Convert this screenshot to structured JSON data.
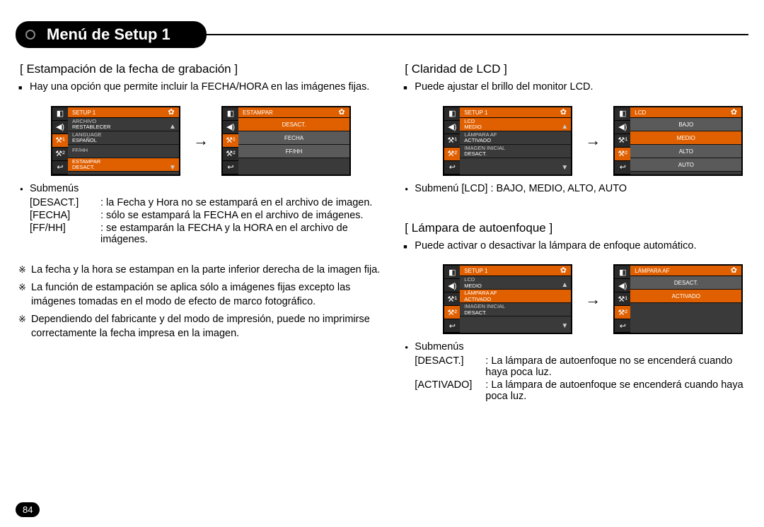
{
  "page": {
    "title": "Menú de Setup 1",
    "number": "84"
  },
  "colors": {
    "accent": "#e06000",
    "menu_bg": "#3a3a3a",
    "border": "#000000",
    "text": "#000000"
  },
  "tabs_icons": [
    "◧",
    "◀)",
    "⚒¹",
    "⚒²",
    "↩"
  ],
  "left": {
    "section": "[ Estampación de la fecha de grabación ]",
    "intro": "Hay una opción que permite incluir la FECHA/HORA en las imágenes fijas.",
    "menu1": {
      "header": "SETUP 1",
      "items": [
        {
          "lbl": "ARCHIVO",
          "val": "RESTABLECER"
        },
        {
          "lbl": "LANGUAGE",
          "val": "ESPAÑOL"
        },
        {
          "lbl": "FF/HH",
          "val": ""
        },
        {
          "lbl": "ESTAMPAR",
          "val": "DESACT."
        }
      ],
      "hi_index": 3
    },
    "menu2": {
      "header": "ESTAMPAR",
      "options": [
        "DESACT.",
        "FECHA",
        "FF/HH"
      ],
      "sel_index": 0
    },
    "subs_label": "Submenús",
    "defs": [
      {
        "term": "[DESACT.]",
        "desc": ": la Fecha y Hora no se estampará en el archivo de imagen."
      },
      {
        "term": "[FECHA]",
        "desc": ": sólo se estampará la FECHA en el archivo de imágenes."
      },
      {
        "term": "[FF/HH]",
        "desc": ": se estamparán la FECHA y la HORA en el archivo de imágenes."
      }
    ],
    "notes": [
      "La fecha y la hora se estampan en la parte inferior derecha de la imagen fija.",
      "La función de estampación se aplica sólo a imágenes fijas excepto las imágenes tomadas en el modo de efecto de marco fotográfico.",
      "Dependiendo del fabricante y del modo de impresión, puede no imprimirse correctamente la fecha impresa en la imagen."
    ]
  },
  "right_a": {
    "section": "[ Claridad de LCD ]",
    "intro": "Puede ajustar el brillo del monitor LCD.",
    "menu1": {
      "header": "SETUP 1",
      "items": [
        {
          "lbl": "LCD",
          "val": "MEDIO"
        },
        {
          "lbl": "LÁMPARA  AF",
          "val": "ACTIVADO"
        },
        {
          "lbl": "IMAGEN INICIAL",
          "val": "DESACT."
        }
      ],
      "hi_index": 0
    },
    "menu2": {
      "header": "LCD",
      "options": [
        "BAJO",
        "MEDIO",
        "ALTO",
        "AUTO"
      ],
      "sel_index": 1
    },
    "sub_line": "Submenú [LCD] : BAJO, MEDIO, ALTO, AUTO"
  },
  "right_b": {
    "section": "[ Lámpara de autoenfoque ]",
    "intro": "Puede activar o desactivar la lámpara de enfoque automático.",
    "menu1": {
      "header": "SETUP 1",
      "items": [
        {
          "lbl": "LCD",
          "val": "MEDIO"
        },
        {
          "lbl": "LÁMPARA  AF",
          "val": "ACTIVADO"
        },
        {
          "lbl": "IMAGEN INICIAL",
          "val": "DESACT."
        }
      ],
      "hi_index": 1
    },
    "menu2": {
      "header": "LÁMPARA  AF",
      "options": [
        "DESACT.",
        "ACTIVADO"
      ],
      "sel_index": 1
    },
    "subs_label": "Submenús",
    "defs": [
      {
        "term": "[DESACT.]",
        "desc": ": La lámpara de autoenfoque no se encenderá cuando haya poca luz."
      },
      {
        "term": "[ACTIVADO]",
        "desc": ": La lámpara de autoenfoque se encenderá cuando haya poca luz."
      }
    ]
  }
}
